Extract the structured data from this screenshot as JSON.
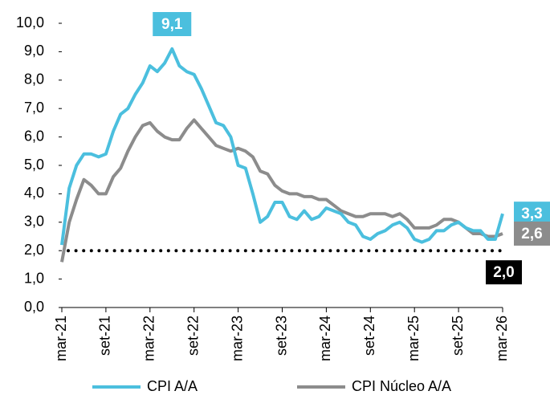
{
  "chart_data": {
    "type": "line",
    "categories": [
      "mar-21",
      null,
      null,
      null,
      null,
      null,
      "set-21",
      null,
      null,
      null,
      null,
      null,
      "mar-22",
      null,
      null,
      null,
      null,
      null,
      "set-22",
      null,
      null,
      null,
      null,
      null,
      "mar-23",
      null,
      null,
      null,
      null,
      null,
      "set-23",
      null,
      null,
      null,
      null,
      null,
      "mar-24",
      null,
      null,
      null,
      null,
      null,
      "set-24",
      null,
      null,
      null,
      null,
      null,
      "mar-25",
      null,
      null,
      null,
      null,
      null,
      "set-25",
      null,
      null,
      null,
      null,
      null,
      "mar-26"
    ],
    "series": [
      {
        "name": "CPI A/A",
        "color": "#4bbfde",
        "values": [
          2.2,
          4.2,
          5.0,
          5.4,
          5.4,
          5.3,
          5.4,
          6.2,
          6.8,
          7.0,
          7.5,
          7.9,
          8.5,
          8.3,
          8.6,
          9.1,
          8.5,
          8.3,
          8.2,
          7.7,
          7.1,
          6.5,
          6.4,
          6.0,
          5.0,
          4.9,
          4.0,
          3.0,
          3.2,
          3.7,
          3.7,
          3.2,
          3.1,
          3.4,
          3.1,
          3.2,
          3.5,
          3.4,
          3.3,
          3.0,
          2.9,
          2.5,
          2.4,
          2.6,
          2.7,
          2.9,
          3.0,
          2.8,
          2.4,
          2.3,
          2.4,
          2.7,
          2.7,
          2.9,
          3.0,
          2.8,
          2.7,
          2.7,
          2.4,
          2.4,
          3.3
        ],
        "value_labels": [
          null,
          null,
          null,
          null,
          null,
          null,
          null,
          null,
          null,
          null,
          null,
          null,
          null,
          null,
          null,
          "9,1",
          null,
          null,
          null,
          null,
          null,
          null,
          null,
          null,
          null,
          null,
          null,
          null,
          null,
          null,
          null,
          null,
          null,
          null,
          null,
          null,
          null,
          null,
          null,
          null,
          null,
          null,
          null,
          null,
          null,
          null,
          null,
          null,
          null,
          null,
          null,
          null,
          null,
          null,
          null,
          null,
          null,
          null,
          null,
          null,
          "3,3"
        ]
      },
      {
        "name": "CPI Núcleo A/A",
        "color": "#8c8c8c",
        "values": [
          1.6,
          3.0,
          3.8,
          4.5,
          4.3,
          4.0,
          4.0,
          4.6,
          4.9,
          5.5,
          6.0,
          6.4,
          6.5,
          6.2,
          6.0,
          5.9,
          5.9,
          6.3,
          6.6,
          6.3,
          6.0,
          5.7,
          5.6,
          5.5,
          5.6,
          5.5,
          5.3,
          4.8,
          4.7,
          4.3,
          4.1,
          4.0,
          4.0,
          3.9,
          3.9,
          3.8,
          3.8,
          3.6,
          3.4,
          3.3,
          3.2,
          3.2,
          3.3,
          3.3,
          3.3,
          3.2,
          3.3,
          3.1,
          2.8,
          2.8,
          2.8,
          2.9,
          3.1,
          3.1,
          3.0,
          2.8,
          2.6,
          2.6,
          2.5,
          2.5,
          2.6
        ],
        "value_labels": [
          null,
          null,
          null,
          null,
          null,
          null,
          null,
          null,
          null,
          null,
          null,
          null,
          null,
          null,
          null,
          null,
          null,
          null,
          null,
          null,
          null,
          null,
          null,
          null,
          null,
          null,
          null,
          null,
          null,
          null,
          null,
          null,
          null,
          null,
          null,
          null,
          null,
          null,
          null,
          null,
          null,
          null,
          null,
          null,
          null,
          null,
          null,
          null,
          null,
          null,
          null,
          null,
          null,
          null,
          null,
          null,
          null,
          null,
          null,
          null,
          "2,6"
        ]
      }
    ],
    "reference_line": {
      "value": 2,
      "label": "2,0",
      "color": "#000000"
    },
    "ylim": [
      0,
      10
    ],
    "yticks": [
      {
        "value": 0,
        "label": "0,0"
      },
      {
        "value": 1,
        "label": "1,0"
      },
      {
        "value": 2,
        "label": "2,0"
      },
      {
        "value": 3,
        "label": "3,0"
      },
      {
        "value": 4,
        "label": "4,0"
      },
      {
        "value": 5,
        "label": "5,0"
      },
      {
        "value": 6,
        "label": "6,0"
      },
      {
        "value": 7,
        "label": "7,0"
      },
      {
        "value": 8,
        "label": "8,0"
      },
      {
        "value": 9,
        "label": "9,0"
      },
      {
        "value": 10,
        "label": "10,0"
      }
    ],
    "grid": false,
    "legend": "bottom"
  }
}
